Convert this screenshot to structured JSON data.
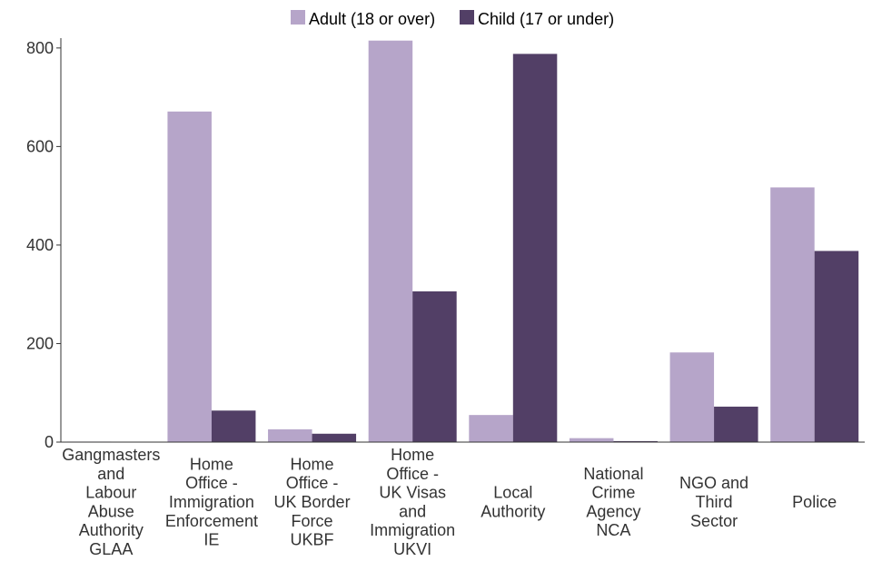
{
  "chart_data": {
    "type": "bar",
    "title": "",
    "xlabel": "",
    "ylabel": "",
    "ylim": [
      0,
      820
    ],
    "yticks": [
      0,
      200,
      400,
      600,
      800
    ],
    "categories": [
      "Gangmasters and Labour Abuse Authority GLAA",
      "Home Office - Immigration Enforcement IE",
      "Home Office - UK Border Force UKBF",
      "Home Office - UK Visas and Immigration UKVI",
      "Local Authority",
      "National Crime Agency NCA",
      "NGO and Third Sector",
      "Police"
    ],
    "category_lines": [
      [
        "Gangmasters",
        "and",
        "Labour",
        "Abuse",
        "Authority",
        "GLAA"
      ],
      [
        "Home",
        "Office -",
        "Immigration",
        "Enforcement",
        "IE"
      ],
      [
        "Home",
        "Office -",
        "UK Border",
        "Force",
        "UKBF"
      ],
      [
        "Home",
        "Office -",
        "UK Visas",
        "and",
        "Immigration",
        "UKVI"
      ],
      [
        "Local",
        "Authority"
      ],
      [
        "National",
        "Crime",
        "Agency",
        "NCA"
      ],
      [
        "NGO and",
        "Third",
        "Sector"
      ],
      [
        "Police"
      ]
    ],
    "series": [
      {
        "name": "Adult (18 or over)",
        "color": "#b6a5c9",
        "values": [
          1,
          671,
          26,
          815,
          55,
          8,
          182,
          517
        ]
      },
      {
        "name": "Child (17 or under)",
        "color": "#523f66",
        "values": [
          0,
          64,
          17,
          306,
          788,
          2,
          72,
          388
        ]
      }
    ],
    "legend_position": "top-center",
    "grid": false
  }
}
